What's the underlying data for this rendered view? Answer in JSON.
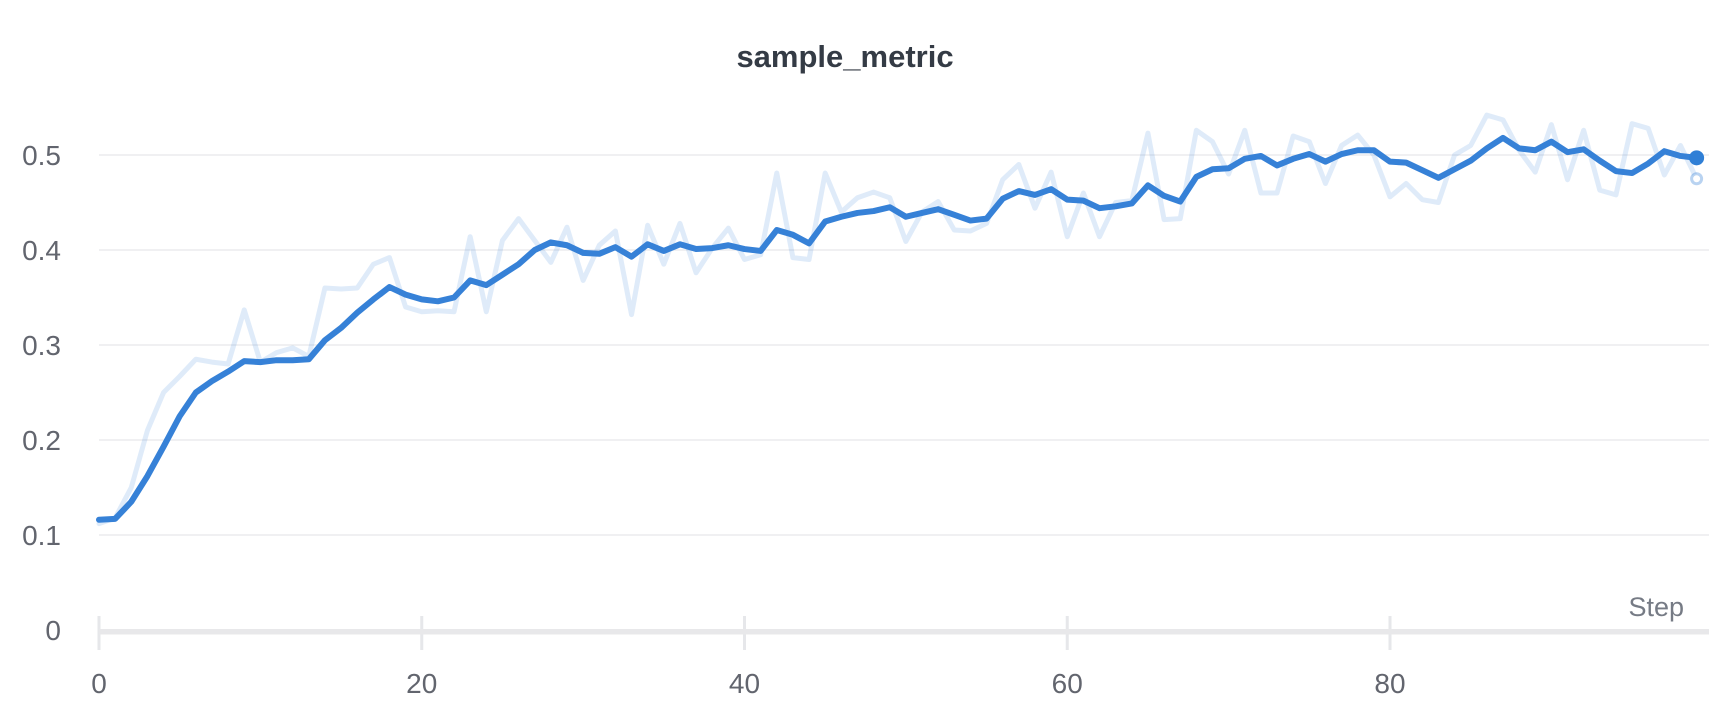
{
  "chart_data": {
    "type": "line",
    "title": "sample_metric",
    "xlabel": "Step",
    "ylabel": "",
    "x_ticks": [
      0,
      20,
      40,
      60,
      80
    ],
    "y_ticks": [
      0,
      0.1,
      0.2,
      0.3,
      0.4,
      0.5
    ],
    "xlim": [
      0,
      100
    ],
    "ylim": [
      0,
      0.558
    ],
    "grid": "horizontal-only",
    "legend": "none",
    "x_values_note": "step = array index, 0 through 99",
    "series": [
      {
        "name": "sample_metric (raw)",
        "role": "raw",
        "values": [
          0.112,
          0.118,
          0.15,
          0.21,
          0.25,
          0.267,
          0.285,
          0.282,
          0.28,
          0.337,
          0.282,
          0.292,
          0.297,
          0.288,
          0.36,
          0.359,
          0.36,
          0.385,
          0.392,
          0.34,
          0.335,
          0.336,
          0.335,
          0.414,
          0.335,
          0.41,
          0.433,
          0.41,
          0.387,
          0.424,
          0.368,
          0.405,
          0.42,
          0.332,
          0.426,
          0.385,
          0.428,
          0.376,
          0.402,
          0.423,
          0.39,
          0.395,
          0.481,
          0.392,
          0.39,
          0.481,
          0.44,
          0.455,
          0.461,
          0.455,
          0.409,
          0.44,
          0.451,
          0.421,
          0.42,
          0.428,
          0.474,
          0.49,
          0.444,
          0.482,
          0.414,
          0.46,
          0.414,
          0.45,
          0.452,
          0.523,
          0.432,
          0.433,
          0.526,
          0.514,
          0.48,
          0.526,
          0.46,
          0.46,
          0.52,
          0.514,
          0.47,
          0.51,
          0.521,
          0.5,
          0.456,
          0.47,
          0.453,
          0.45,
          0.5,
          0.51,
          0.542,
          0.537,
          0.505,
          0.482,
          0.532,
          0.474,
          0.526,
          0.463,
          0.458,
          0.533,
          0.528,
          0.479,
          0.51,
          0.475
        ]
      },
      {
        "name": "sample_metric (smoothed)",
        "role": "smoothed",
        "values": [
          0.116,
          0.117,
          0.135,
          0.162,
          0.193,
          0.225,
          0.25,
          0.262,
          0.272,
          0.283,
          0.282,
          0.284,
          0.284,
          0.285,
          0.305,
          0.318,
          0.334,
          0.348,
          0.361,
          0.353,
          0.348,
          0.346,
          0.35,
          0.368,
          0.363,
          0.374,
          0.385,
          0.4,
          0.408,
          0.405,
          0.397,
          0.396,
          0.403,
          0.393,
          0.406,
          0.399,
          0.406,
          0.401,
          0.402,
          0.405,
          0.401,
          0.399,
          0.421,
          0.416,
          0.407,
          0.43,
          0.435,
          0.439,
          0.441,
          0.445,
          0.435,
          0.439,
          0.443,
          0.437,
          0.431,
          0.433,
          0.454,
          0.462,
          0.458,
          0.464,
          0.453,
          0.452,
          0.444,
          0.446,
          0.449,
          0.468,
          0.457,
          0.451,
          0.477,
          0.485,
          0.486,
          0.496,
          0.499,
          0.489,
          0.496,
          0.501,
          0.493,
          0.501,
          0.505,
          0.505,
          0.493,
          0.492,
          0.484,
          0.476,
          0.485,
          0.494,
          0.507,
          0.518,
          0.507,
          0.505,
          0.514,
          0.503,
          0.506,
          0.494,
          0.483,
          0.481,
          0.491,
          0.504,
          0.499,
          0.497
        ]
      }
    ],
    "endpoint_markers": [
      {
        "series": "smoothed",
        "step": 99,
        "value": 0.497,
        "style": "solid-dot"
      },
      {
        "series": "raw",
        "step": 99,
        "value": 0.475,
        "style": "hollow-dot"
      }
    ]
  },
  "colors": {
    "line_blue": "#3681d7",
    "dot_blue": "#2f7fd6",
    "raw_line_opacity": "0.16",
    "hollow_dot_opacity": "0.35",
    "gridline": "#ebecee",
    "axis_bar": "#e8e8ea",
    "tick_mark": "#e6e7ea",
    "tick_text": "#62656e",
    "axis_name_text": "#767b85",
    "title_text": "#343b45",
    "background": "#ffffff"
  }
}
